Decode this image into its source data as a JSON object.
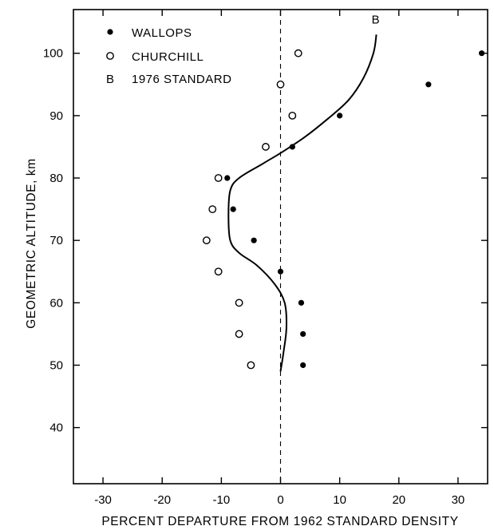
{
  "chart_data": {
    "type": "scatter",
    "title": "",
    "xlabel": "PERCENT DEPARTURE FROM 1962 STANDARD DENSITY",
    "ylabel": "GEOMETRIC ALTITUDE, km",
    "xlim": [
      -35,
      35
    ],
    "ylim": [
      31,
      107
    ],
    "x_ticks": [
      -30,
      -20,
      -10,
      0,
      10,
      20,
      30
    ],
    "y_ticks": [
      40,
      50,
      60,
      70,
      80,
      90,
      100
    ],
    "grid": false,
    "legend_position": "top-left",
    "reference_line": {
      "x": 0,
      "style": "dashed"
    },
    "series": [
      {
        "name": "WALLOPS",
        "marker": "filled-circle",
        "symbol": "•",
        "points": [
          {
            "x": 34,
            "y": 100
          },
          {
            "x": 25,
            "y": 95
          },
          {
            "x": 10,
            "y": 90
          },
          {
            "x": 2,
            "y": 85
          },
          {
            "x": -9,
            "y": 80
          },
          {
            "x": -8,
            "y": 75
          },
          {
            "x": -4.5,
            "y": 70
          },
          {
            "x": 0,
            "y": 65
          },
          {
            "x": 3.5,
            "y": 60
          },
          {
            "x": 3.8,
            "y": 55
          },
          {
            "x": 3.8,
            "y": 50
          }
        ]
      },
      {
        "name": "CHURCHILL",
        "marker": "open-circle",
        "symbol": "O",
        "points": [
          {
            "x": 3,
            "y": 100
          },
          {
            "x": 0,
            "y": 95
          },
          {
            "x": 2,
            "y": 90
          },
          {
            "x": -2.5,
            "y": 85
          },
          {
            "x": -10.5,
            "y": 80
          },
          {
            "x": -11.5,
            "y": 75
          },
          {
            "x": -12.5,
            "y": 70
          },
          {
            "x": -10.5,
            "y": 65
          },
          {
            "x": -7,
            "y": 60
          },
          {
            "x": -7,
            "y": 55
          },
          {
            "x": -5,
            "y": 50
          }
        ]
      },
      {
        "name": "1976 STANDARD",
        "marker": "line",
        "symbol": "B",
        "curve_label": "B",
        "points": [
          {
            "x": 0,
            "y": 49
          },
          {
            "x": 0.5,
            "y": 52
          },
          {
            "x": 1,
            "y": 56
          },
          {
            "x": 0.7,
            "y": 60
          },
          {
            "x": -1,
            "y": 63
          },
          {
            "x": -4,
            "y": 66
          },
          {
            "x": -7,
            "y": 68
          },
          {
            "x": -8.5,
            "y": 70
          },
          {
            "x": -8.8,
            "y": 74
          },
          {
            "x": -8.5,
            "y": 78
          },
          {
            "x": -7,
            "y": 80
          },
          {
            "x": -3,
            "y": 82.3
          },
          {
            "x": 0,
            "y": 84
          },
          {
            "x": 4,
            "y": 86.5
          },
          {
            "x": 8,
            "y": 89.5
          },
          {
            "x": 11.5,
            "y": 92.5
          },
          {
            "x": 14,
            "y": 96
          },
          {
            "x": 15.7,
            "y": 100
          },
          {
            "x": 16.2,
            "y": 103
          }
        ]
      }
    ]
  }
}
